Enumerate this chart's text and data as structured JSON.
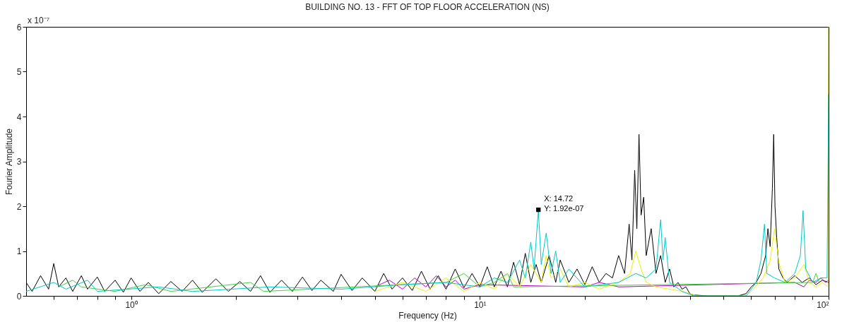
{
  "chart_data": {
    "type": "line",
    "title": "BUILDING NO. 13 - FFT OF TOP FLOOR ACCELERATION (NS)",
    "xlabel": "Frequency (Hz)",
    "ylabel": "Fourier Amplitude",
    "annotations": [
      "x 10⁻⁷",
      {
        "text": "X: 14.72\nY: 1.92e-07",
        "x": 14.72,
        "y": 1.92
      }
    ],
    "xlim": [
      0.5,
      100
    ],
    "ylim": [
      0,
      6
    ],
    "log": "x",
    "grid": false,
    "marker": "none",
    "line_style": "solid",
    "xticks": [
      {
        "value": 0.6,
        "label": null
      },
      {
        "value": 0.7,
        "label": null
      },
      {
        "value": 0.8,
        "label": null
      },
      {
        "value": 0.9,
        "label": null
      },
      {
        "value": 1,
        "label": "10⁰"
      },
      {
        "value": 2,
        "label": null
      },
      {
        "value": 3,
        "label": null
      },
      {
        "value": 4,
        "label": null
      },
      {
        "value": 5,
        "label": null
      },
      {
        "value": 6,
        "label": null
      },
      {
        "value": 7,
        "label": null
      },
      {
        "value": 8,
        "label": null
      },
      {
        "value": 9,
        "label": null
      },
      {
        "value": 10,
        "label": "10¹"
      },
      {
        "value": 20,
        "label": null
      },
      {
        "value": 30,
        "label": null
      },
      {
        "value": 40,
        "label": null
      },
      {
        "value": 50,
        "label": null
      },
      {
        "value": 60,
        "label": null
      },
      {
        "value": 70,
        "label": null
      },
      {
        "value": 80,
        "label": null
      },
      {
        "value": 90,
        "label": null
      },
      {
        "value": 100,
        "label": "10²"
      }
    ],
    "yticks": [
      0,
      1,
      2,
      3,
      4,
      5,
      6
    ],
    "series": [
      {
        "color": "#000000",
        "x": [
          0.5,
          0.52,
          0.55,
          0.58,
          0.6,
          0.62,
          0.65,
          0.68,
          0.72,
          0.75,
          0.8,
          0.84,
          0.9,
          0.95,
          1.0,
          1.06,
          1.12,
          1.2,
          1.3,
          1.4,
          1.5,
          1.6,
          1.75,
          1.9,
          2.05,
          2.2,
          2.35,
          2.5,
          2.7,
          2.9,
          3.1,
          3.3,
          3.5,
          3.8,
          4.0,
          4.3,
          4.6,
          5.0,
          5.3,
          5.6,
          6.0,
          6.4,
          6.8,
          7.2,
          7.6,
          8.0,
          8.5,
          9.0,
          9.5,
          10,
          10.5,
          11,
          11.5,
          12,
          12.5,
          13,
          13.5,
          14,
          14.5,
          15,
          15.8,
          16.5,
          17,
          18,
          19,
          20,
          21,
          22,
          23,
          24,
          25,
          26,
          26.8,
          27.3,
          27.8,
          28.2,
          28.6,
          29,
          29.5,
          30,
          31,
          32,
          33,
          34,
          35,
          36,
          37,
          38,
          39,
          40,
          41,
          45,
          50,
          55,
          58,
          60,
          62,
          64,
          66,
          67,
          68,
          69,
          69.6,
          70.2,
          71,
          72,
          74,
          76,
          80,
          84,
          88,
          92,
          96,
          100
        ],
        "values": [
          0.3,
          0.1,
          0.45,
          0.15,
          0.72,
          0.2,
          0.4,
          0.1,
          0.45,
          0.15,
          0.42,
          0.1,
          0.35,
          0.08,
          0.4,
          0.1,
          0.3,
          0.05,
          0.32,
          0.1,
          0.35,
          0.08,
          0.38,
          0.1,
          0.32,
          0.1,
          0.45,
          0.08,
          0.35,
          0.1,
          0.42,
          0.12,
          0.35,
          0.1,
          0.48,
          0.12,
          0.4,
          0.1,
          0.5,
          0.15,
          0.4,
          0.12,
          0.55,
          0.15,
          0.45,
          0.15,
          0.6,
          0.18,
          0.5,
          0.2,
          0.65,
          0.2,
          0.55,
          0.2,
          0.75,
          0.25,
          0.95,
          0.3,
          0.7,
          0.3,
          0.9,
          0.3,
          0.8,
          0.3,
          0.6,
          0.25,
          0.65,
          0.3,
          0.5,
          0.4,
          0.9,
          0.5,
          1.6,
          0.8,
          2.8,
          1.5,
          3.6,
          1.8,
          2.2,
          0.9,
          1.5,
          0.5,
          0.9,
          0.3,
          0.6,
          0.2,
          0.3,
          0.15,
          0.2,
          0.05,
          0.02,
          0,
          0,
          0,
          0.05,
          0.2,
          0.3,
          0.5,
          0.9,
          1.5,
          1.1,
          2.4,
          3.6,
          2.0,
          1.3,
          0.6,
          0.4,
          0.3,
          0.45,
          0.3,
          0.4,
          0.25,
          0.35,
          0.3
        ]
      },
      {
        "color": "#c000c0",
        "x": [
          5,
          5.5,
          6,
          6.5,
          7,
          7.5,
          8,
          8.5,
          9,
          10,
          20,
          22,
          25,
          80,
          85,
          88,
          92,
          95,
          98,
          100
        ],
        "values": [
          0.2,
          0.35,
          0.15,
          0.4,
          0.2,
          0.45,
          0.2,
          0.35,
          0.15,
          0.25,
          0.2,
          0.3,
          0.2,
          0.3,
          0.2,
          0.35,
          0.3,
          0.4,
          0.3,
          0.35
        ]
      },
      {
        "color": "#40d040",
        "x": [
          0.62,
          0.68,
          0.72,
          0.9,
          1.1,
          1.3,
          2.2,
          2.4,
          8,
          9,
          10,
          11,
          12,
          12.5,
          90,
          92,
          94
        ],
        "values": [
          0.2,
          0.35,
          0.2,
          0.1,
          0.25,
          0.1,
          0.3,
          0.1,
          0.3,
          0.5,
          0.2,
          0.3,
          0.5,
          0.2,
          0.3,
          0.5,
          0.3
        ]
      },
      {
        "color": "#f0f000",
        "x": [
          5,
          6,
          7,
          8,
          9,
          10,
          11,
          12,
          13,
          14,
          15,
          15.5,
          16,
          17,
          18,
          20,
          22,
          25,
          27,
          28,
          29,
          30,
          32,
          35,
          38,
          40,
          42,
          58,
          60,
          65,
          68,
          70,
          72,
          75,
          80,
          85,
          88,
          92,
          96,
          99.5,
          100
        ],
        "values": [
          0.1,
          0.3,
          0.1,
          0.4,
          0.1,
          0.3,
          0.15,
          0.5,
          0.2,
          0.7,
          0.3,
          0.9,
          0.4,
          0.6,
          0.2,
          0.3,
          0.15,
          0.3,
          0.5,
          1.0,
          0.6,
          0.3,
          0.2,
          0.15,
          0.1,
          0.05,
          0,
          0,
          0.1,
          0.4,
          0.8,
          1.5,
          0.75,
          0.3,
          0.4,
          0.7,
          0.3,
          0.2,
          0.3,
          0.2,
          6
        ]
      },
      {
        "color": "#00c8c8",
        "x": [
          0.5,
          0.6,
          0.65,
          0.75,
          0.8,
          1.2,
          1.5,
          2.5,
          4,
          6,
          8,
          10,
          11,
          12,
          13,
          13.5,
          14,
          14.3,
          14.72,
          15,
          15.5,
          16,
          16.5,
          17,
          18,
          20,
          25,
          28,
          30,
          32,
          33,
          33.5,
          34,
          35,
          38,
          41,
          58,
          62,
          64,
          65.5,
          66.5,
          70,
          75,
          80,
          83,
          84.5,
          86,
          90,
          95,
          99,
          100
        ],
        "values": [
          0.1,
          0.3,
          0.15,
          0.35,
          0.1,
          0.2,
          0.1,
          0.2,
          0.15,
          0.25,
          0.3,
          0.2,
          0.4,
          0.3,
          0.8,
          0.4,
          1.2,
          0.6,
          1.92,
          0.7,
          1.4,
          0.5,
          1.0,
          0.3,
          0.6,
          0.2,
          0.3,
          0.5,
          0.4,
          0.6,
          1.7,
          0.8,
          1.3,
          0.3,
          0.1,
          0,
          0,
          0.3,
          0.8,
          1.6,
          0.5,
          0.4,
          0.3,
          0.5,
          0.9,
          1.9,
          0.6,
          0.3,
          0.4,
          0.4,
          4.5
        ]
      }
    ]
  }
}
